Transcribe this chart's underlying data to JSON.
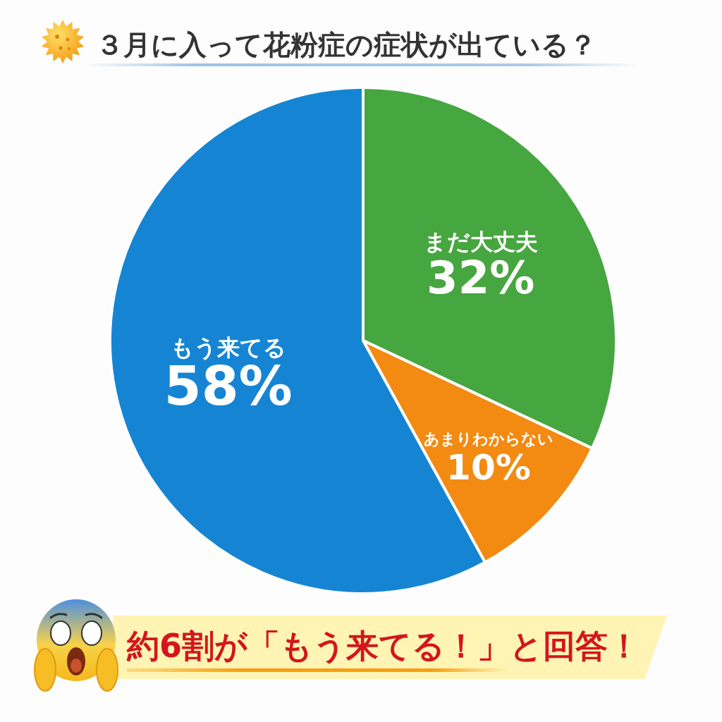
{
  "chart_data": {
    "type": "pie",
    "title": "３月に入って花粉症の症状が出ている？",
    "categories": [
      "まだ大丈夫",
      "あまりわからない",
      "もう来てる"
    ],
    "values": [
      32,
      10,
      58
    ],
    "colors": [
      "#46a63f",
      "#f38a11",
      "#1585d3"
    ],
    "value_labels": [
      "32%",
      "10%",
      "58%"
    ],
    "annotations": [
      "約6割が「もう来てる！」と回答！"
    ]
  }
}
